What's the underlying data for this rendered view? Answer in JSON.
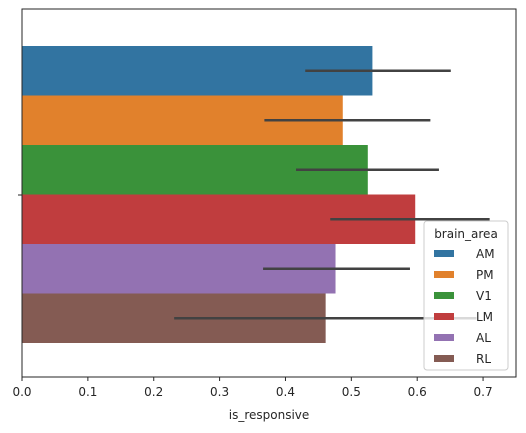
{
  "chart_data": {
    "type": "bar",
    "orientation": "horizontal",
    "xlabel": "is_responsive",
    "ylabel": "",
    "xlim": [
      0.0,
      0.75
    ],
    "xticks": [
      "0.0",
      "0.1",
      "0.2",
      "0.3",
      "0.4",
      "0.5",
      "0.6",
      "0.7"
    ],
    "grid": false,
    "legend": {
      "title": "brain_area",
      "placement": "lower-right"
    },
    "series": [
      {
        "name": "AM",
        "value": 0.532,
        "ci": [
          0.43,
          0.651
        ],
        "color": "#3274a1"
      },
      {
        "name": "PM",
        "value": 0.487,
        "ci": [
          0.368,
          0.62
        ],
        "color": "#e1812c"
      },
      {
        "name": "V1",
        "value": 0.525,
        "ci": [
          0.416,
          0.633
        ],
        "color": "#3a923a"
      },
      {
        "name": "LM",
        "value": 0.597,
        "ci": [
          0.468,
          0.71
        ],
        "color": "#c03d3e"
      },
      {
        "name": "AL",
        "value": 0.476,
        "ci": [
          0.366,
          0.589
        ],
        "color": "#9372b2"
      },
      {
        "name": "RL",
        "value": 0.461,
        "ci": [
          0.231,
          0.69
        ],
        "color": "#845b53"
      }
    ],
    "errorbar_color": "#424242"
  }
}
